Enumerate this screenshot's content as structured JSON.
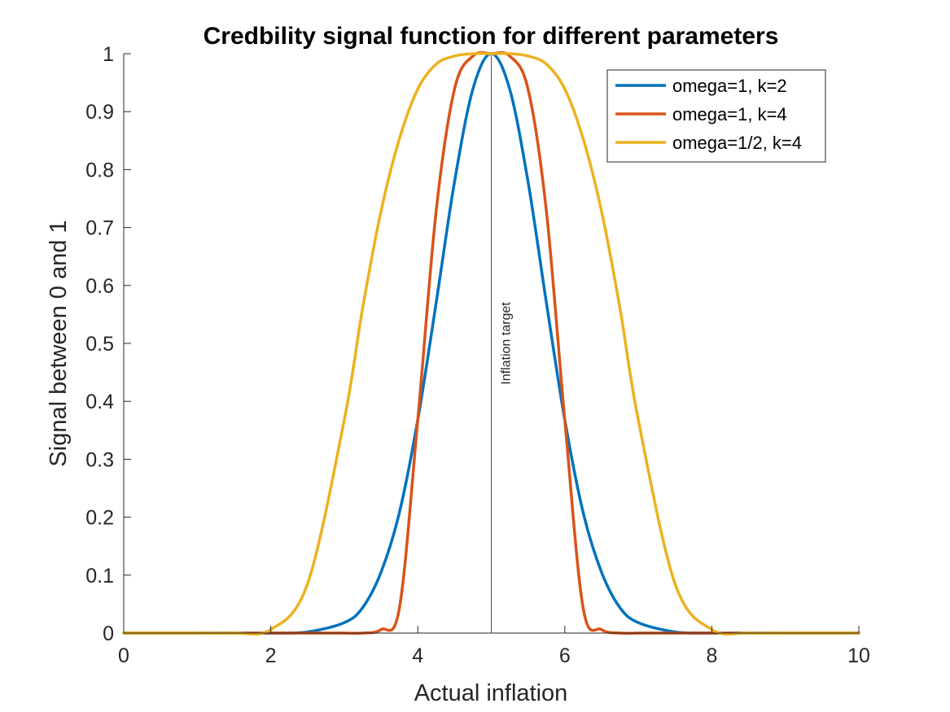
{
  "chart_data": {
    "type": "line",
    "title": "Credbility signal function for different parameters",
    "xlabel": "Actual inflation",
    "ylabel": "Signal between 0 and 1",
    "xlim": [
      0,
      10
    ],
    "ylim": [
      0,
      1
    ],
    "xticks": [
      0,
      2,
      4,
      6,
      8,
      10
    ],
    "yticks": [
      0,
      0.1,
      0.2,
      0.3,
      0.4,
      0.5,
      0.6,
      0.7,
      0.8,
      0.9,
      1
    ],
    "grid": false,
    "legend_position": "top-right",
    "x": [
      0,
      0.5,
      1,
      1.5,
      2,
      2.5,
      3,
      3.25,
      3.5,
      3.75,
      4,
      4.25,
      4.5,
      4.75,
      5,
      5.25,
      5.5,
      5.75,
      6,
      6.25,
      6.5,
      6.75,
      7,
      7.5,
      8,
      8.5,
      9,
      9.5,
      10
    ],
    "series": [
      {
        "name": "omega=1, k=2",
        "color": "#0072BD",
        "values": [
          0,
          0,
          0,
          0,
          0,
          0.002,
          0.018,
          0.044,
          0.105,
          0.208,
          0.368,
          0.57,
          0.779,
          0.939,
          1,
          0.939,
          0.779,
          0.57,
          0.368,
          0.208,
          0.105,
          0.044,
          0.018,
          0.002,
          0,
          0,
          0,
          0,
          0
        ]
      },
      {
        "name": "omega=1, k=4",
        "color": "#D95319",
        "values": [
          0,
          0,
          0,
          0,
          0,
          0,
          0,
          0,
          0.006,
          0.043,
          0.368,
          0.728,
          0.939,
          0.996,
          1,
          0.996,
          0.939,
          0.728,
          0.368,
          0.043,
          0.006,
          0,
          0,
          0,
          0,
          0,
          0,
          0,
          0
        ]
      },
      {
        "name": "omega=1/2, k=4",
        "color": "#EDB120",
        "values": [
          0,
          0,
          0,
          0,
          0.006,
          0.085,
          0.368,
          0.561,
          0.728,
          0.853,
          0.939,
          0.982,
          0.996,
          1,
          1,
          1,
          0.996,
          0.982,
          0.939,
          0.853,
          0.728,
          0.561,
          0.368,
          0.085,
          0.006,
          0,
          0,
          0,
          0
        ]
      }
    ],
    "annotations": [
      {
        "type": "vline",
        "x": 5,
        "label": "Inflation target"
      }
    ]
  }
}
